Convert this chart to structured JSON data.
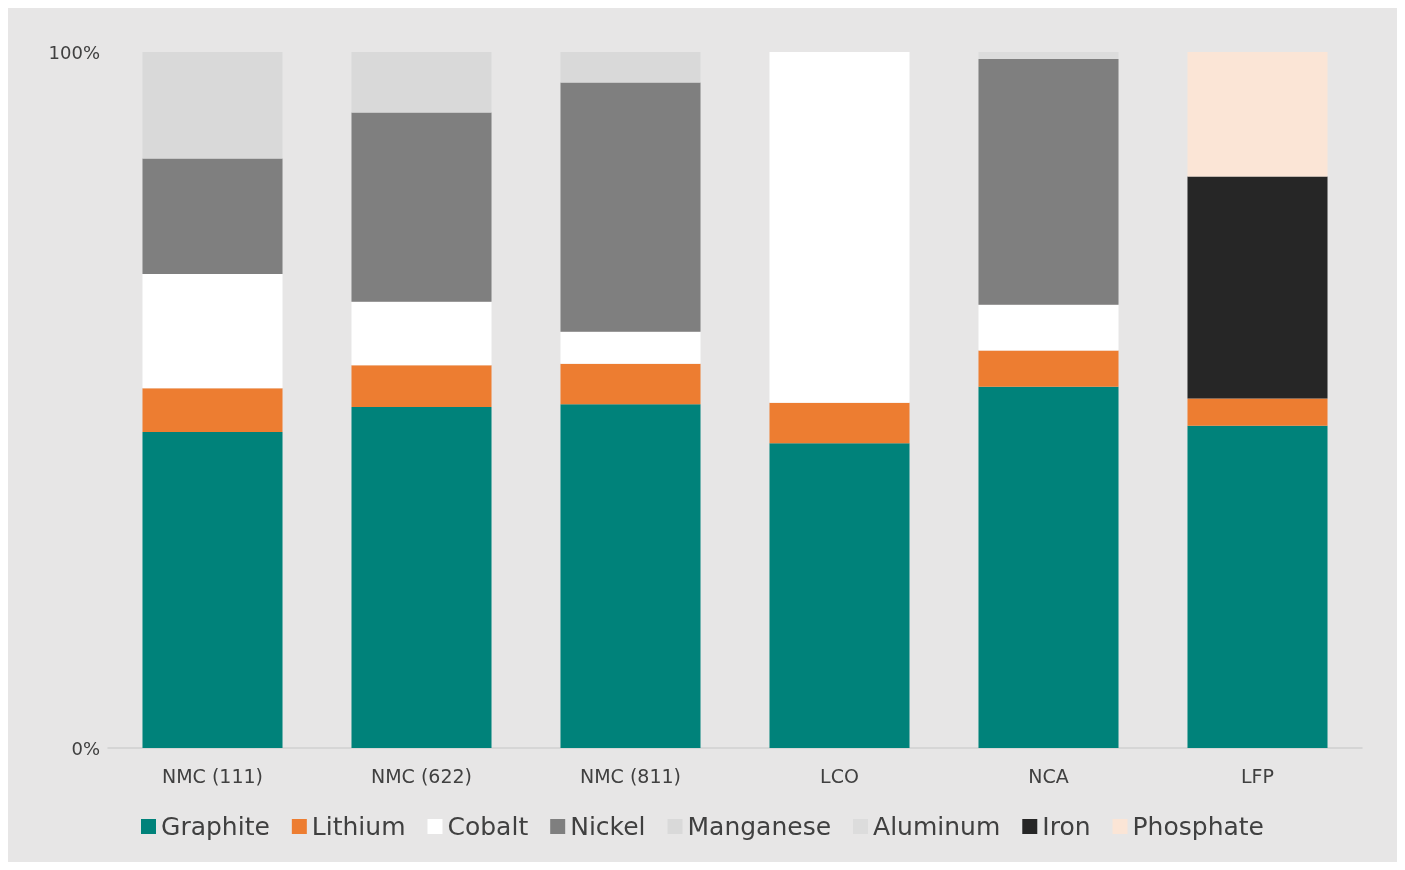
{
  "chart_data": {
    "type": "bar",
    "stacked": true,
    "categories": [
      "NMC (111)",
      "NMC (622)",
      "NMC (811)",
      "LCO",
      "NCA",
      "LFP"
    ],
    "series": [
      {
        "name": "Graphite",
        "color": "#00827a",
        "values": [
          45.4,
          49.0,
          49.4,
          43.8,
          51.9,
          46.3
        ]
      },
      {
        "name": "Lithium",
        "color": "#ed7d31",
        "values": [
          6.3,
          6.0,
          5.8,
          5.8,
          5.2,
          3.9
        ]
      },
      {
        "name": "Cobalt",
        "color": "#ffffff",
        "values": [
          16.4,
          9.1,
          4.6,
          50.4,
          6.6,
          null
        ]
      },
      {
        "name": "Nickel",
        "color": "#7f7f7f",
        "values": [
          16.6,
          27.2,
          35.8,
          null,
          35.3,
          null
        ]
      },
      {
        "name": "Manganese",
        "color": "#d9d9d9",
        "values": [
          15.3,
          8.7,
          4.4,
          null,
          null,
          null
        ]
      },
      {
        "name": "Aluminum",
        "color": "#dcdcdc",
        "values": [
          null,
          null,
          null,
          null,
          1.0,
          null
        ]
      },
      {
        "name": "Iron",
        "color": "#262626",
        "values": [
          null,
          null,
          null,
          null,
          null,
          31.9
        ]
      },
      {
        "name": "Phosphate",
        "color": "#fbe5d6",
        "values": [
          null,
          null,
          null,
          null,
          null,
          17.9
        ]
      }
    ],
    "ylim": [
      0,
      100
    ],
    "yticks": [
      {
        "value": 0,
        "label": "0%"
      },
      {
        "value": 100,
        "label": "100%"
      }
    ],
    "grid": false,
    "legend": "bottom"
  }
}
